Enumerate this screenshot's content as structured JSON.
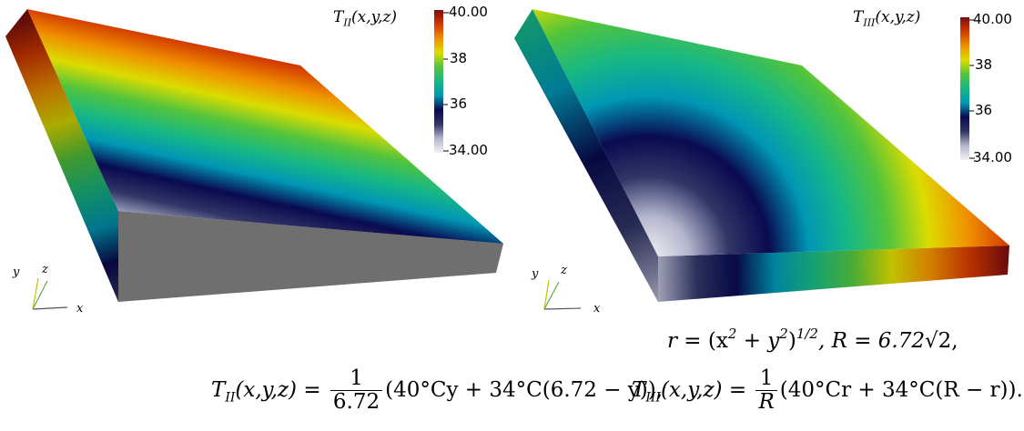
{
  "colormap": {
    "stops": [
      "#f2f2f2",
      "#b5b6cf",
      "#313666",
      "#0a0a50",
      "#0097b5",
      "#18b884",
      "#52c43c",
      "#dcdc00",
      "#f09000",
      "#d23900",
      "#7a0e0e"
    ]
  },
  "left": {
    "colorbar": {
      "title_main": "T",
      "title_sub": "II",
      "title_args": "(x,y,z)",
      "max_label": "40.00",
      "min_label": "34.00",
      "mid_ticks": [
        "38",
        "36"
      ]
    },
    "axes": {
      "x": "x",
      "y": "y",
      "z": "z"
    }
  },
  "right": {
    "colorbar": {
      "title_main": "T",
      "title_sub": "III",
      "title_args": "(x,y,z)",
      "max_label": "40.00",
      "min_label": "34.00",
      "mid_ticks": [
        "38",
        "36"
      ]
    },
    "axes": {
      "x": "x",
      "y": "y",
      "z": "z"
    }
  },
  "equations": {
    "r_def": {
      "lhs": "r",
      "eq": " = (x",
      "sup1": "2",
      "mid": " + y",
      "sup2": "2",
      "close": ")",
      "sup3": "1/2",
      "tail": ", R = 6.72",
      "root": "√2,"
    },
    "t2": {
      "lhs_main": "T",
      "lhs_sub": "II",
      "lhs_args": "(x,y,z) = ",
      "num": "1",
      "den": "6.72",
      "body": "(40°Cy + 34°C(6.72 − y)),"
    },
    "t3": {
      "lhs_main": "T",
      "lhs_sub": "III",
      "lhs_args": "(x,y,z) = ",
      "num": "1",
      "den": "R",
      "body": "(40°Cr + 34°C(R − r))."
    }
  }
}
